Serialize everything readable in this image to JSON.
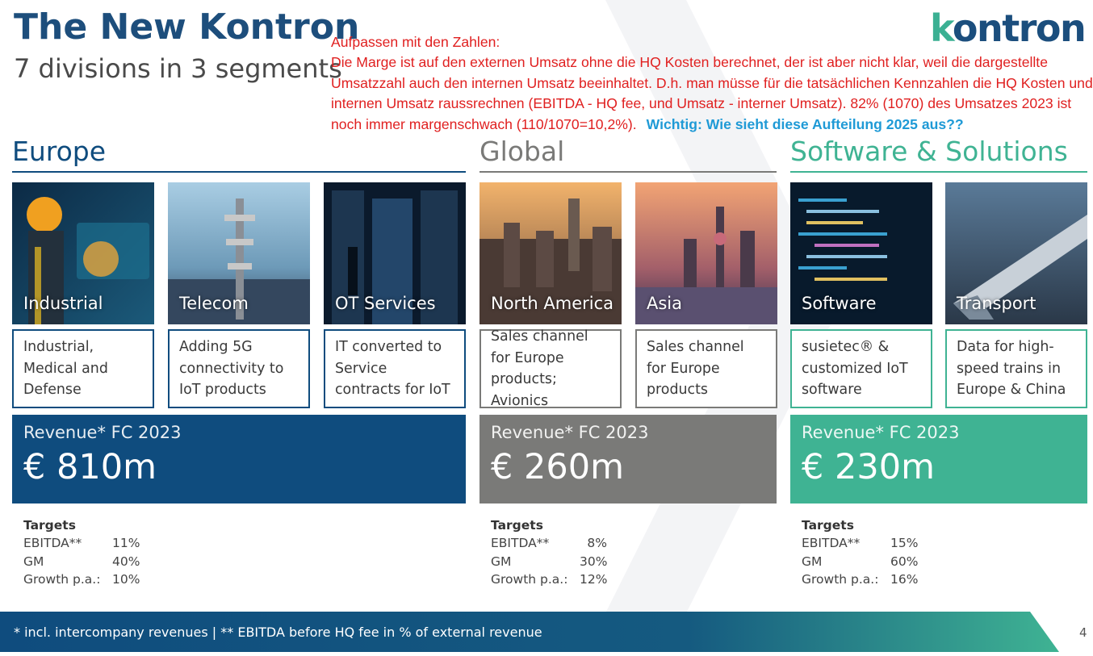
{
  "header": {
    "title": "The New Kontron",
    "subtitle": "7 divisions in 3 segments",
    "logo": "kontron"
  },
  "note": {
    "heading": "Aufpassen mit den Zahlen:",
    "body": "Die Marge ist auf den externen Umsatz ohne die HQ Kosten berechnet, der ist aber nicht klar, weil die dargestellte Umsatzzahl auch den internen Umsatz beeinhaltet. D.h. man müsse für die tatsächlichen Kennzahlen die HQ Kosten und internen Umsatz raussrechnen (EBITDA - HQ fee, und Umsatz - interner Umsatz). 82% (1070) des Umsatzes 2023 ist noch immer margenschwach (110/1070=10,2%).",
    "highlight": "Wichtig: Wie sieht diese Aufteilung 2025 aus??"
  },
  "segments": [
    {
      "name": "Europe",
      "color": "#0f4c7e",
      "divisions": [
        {
          "label": "Industrial",
          "desc": "Industrial, Medical and Defense",
          "icon": "engineer-photo"
        },
        {
          "label": "Telecom",
          "desc": "Adding 5G connectivity to IoT products",
          "icon": "cell-tower-photo"
        },
        {
          "label": "OT Services",
          "desc": "IT converted to Service contracts for IoT",
          "icon": "server-room-photo"
        }
      ],
      "revenue_label": "Revenue* FC 2023",
      "revenue_value": "€ 810m",
      "targets_title": "Targets",
      "targets": [
        {
          "name": "EBITDA**",
          "value": "11%"
        },
        {
          "name": "GM",
          "value": "40%"
        },
        {
          "name": "Growth p.a.:",
          "value": "10%"
        }
      ]
    },
    {
      "name": "Global",
      "color": "#7a7a78",
      "divisions": [
        {
          "label": "North America",
          "desc": "Sales channel for Europe products; Avionics",
          "icon": "city-skyline-photo"
        },
        {
          "label": "Asia",
          "desc": "Sales channel for Europe products",
          "icon": "asia-skyline-photo"
        }
      ],
      "revenue_label": "Revenue* FC 2023",
      "revenue_value": "€ 260m",
      "targets_title": "Targets",
      "targets": [
        {
          "name": "EBITDA**",
          "value": "8%"
        },
        {
          "name": "GM",
          "value": "30%"
        },
        {
          "name": "Growth p.a.:",
          "value": "12%"
        }
      ]
    },
    {
      "name": "Software & Solutions",
      "color": "#3fb393",
      "divisions": [
        {
          "label": "Software",
          "desc": "susietec® & customized IoT software",
          "icon": "code-screen-photo"
        },
        {
          "label": "Transport",
          "desc": "Data for high-speed trains in Europe & China",
          "icon": "train-photo"
        }
      ],
      "revenue_label": "Revenue* FC 2023",
      "revenue_value": "€ 230m",
      "targets_title": "Targets",
      "targets": [
        {
          "name": "EBITDA**",
          "value": "15%"
        },
        {
          "name": "GM",
          "value": "60%"
        },
        {
          "name": "Growth p.a.:",
          "value": "16%"
        }
      ]
    }
  ],
  "footer": {
    "text": "* incl. intercompany revenues | ** EBITDA before HQ fee in % of external revenue",
    "page": "4"
  }
}
